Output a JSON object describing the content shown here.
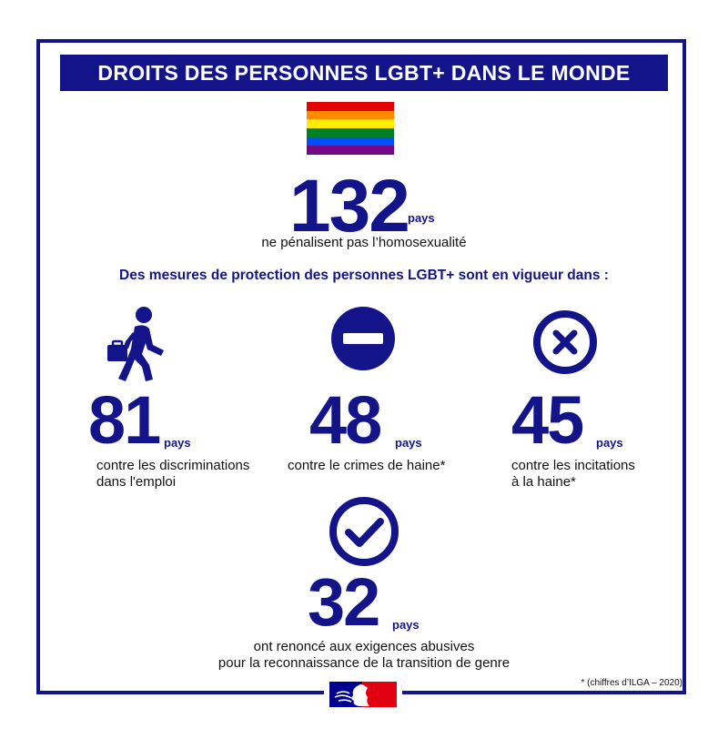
{
  "title": "DROITS DES PERSONNES LGBT+ DANS LE MONDE",
  "flag_colors": [
    "#e40303",
    "#ff8c00",
    "#ffed00",
    "#008026",
    "#004dff",
    "#750787"
  ],
  "headline": {
    "value": "132",
    "unit": "pays",
    "description": "ne pénalisent pas l’homosexualité"
  },
  "subtitle": "Des mesures de protection des personnes LGBT+ sont en vigueur dans :",
  "stats": [
    {
      "value": "81",
      "unit": "pays",
      "line1": "contre les discriminations",
      "line2": "dans l'emploi",
      "icon": "worker-briefcase-icon"
    },
    {
      "value": "48",
      "unit": "pays",
      "line1": "contre le crimes de haine*",
      "line2": "",
      "icon": "no-entry-icon"
    },
    {
      "value": "45",
      "unit": "pays",
      "line1": "contre les incitations",
      "line2": "à la haine*",
      "icon": "cross-circle-icon"
    },
    {
      "value": "32",
      "unit": "pays",
      "line1": "ont renoncé aux exigences abusives",
      "line2": "pour la reconnaissance de la transition de genre",
      "icon": "check-circle-icon"
    }
  ],
  "footnote": "* (chiffres d’ILGA – 2020)",
  "colors": {
    "primary": "#14148a",
    "marianne_blue": "#000091",
    "marianne_red": "#e1000f"
  }
}
